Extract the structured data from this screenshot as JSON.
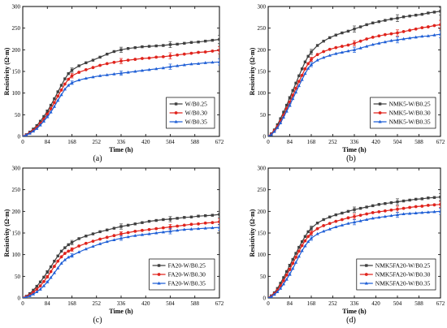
{
  "chart_data": [
    {
      "type": "line",
      "panel_label": "(a)",
      "xlabel": "Time (h)",
      "ylabel": "Resistivity (Ω·m)",
      "xlim": [
        0,
        672
      ],
      "ylim": [
        0,
        300
      ],
      "xticks": [
        0,
        84,
        168,
        252,
        336,
        420,
        504,
        588,
        672
      ],
      "yticks": [
        0,
        50,
        100,
        150,
        200,
        250,
        300
      ],
      "legend_position": "bottom-right",
      "x": [
        0,
        12,
        24,
        36,
        48,
        60,
        72,
        84,
        96,
        108,
        120,
        132,
        144,
        156,
        168,
        192,
        216,
        240,
        264,
        288,
        312,
        336,
        360,
        384,
        408,
        432,
        456,
        480,
        504,
        528,
        552,
        576,
        600,
        624,
        648,
        672
      ],
      "series": [
        {
          "name": "W/B0.25",
          "color": "#404040",
          "marker": "square",
          "values": [
            0,
            4,
            10,
            17,
            25,
            35,
            46,
            58,
            72,
            87,
            103,
            118,
            133,
            145,
            153,
            163,
            170,
            176,
            183,
            190,
            196,
            200,
            203,
            205,
            207,
            208,
            209,
            210,
            212,
            213,
            215,
            217,
            218,
            220,
            222,
            224
          ],
          "errors": [
            0,
            1,
            1,
            2,
            2,
            2,
            2,
            3,
            3,
            3,
            4,
            4,
            5,
            5,
            5,
            5,
            5,
            5,
            5,
            6,
            6,
            6,
            6,
            6,
            6,
            6,
            6,
            7,
            7,
            7,
            7,
            7,
            7,
            8,
            8,
            9
          ]
        },
        {
          "name": "W/B0.30",
          "color": "#e0241d",
          "marker": "circle",
          "values": [
            0,
            3,
            8,
            14,
            21,
            30,
            40,
            51,
            64,
            78,
            93,
            107,
            121,
            132,
            140,
            148,
            154,
            159,
            164,
            168,
            171,
            174,
            176,
            178,
            180,
            181,
            183,
            184,
            186,
            188,
            190,
            192,
            194,
            195,
            197,
            199
          ],
          "errors": [
            0,
            1,
            1,
            1,
            2,
            2,
            2,
            3,
            3,
            3,
            3,
            4,
            4,
            4,
            5,
            5,
            5,
            5,
            5,
            5,
            6,
            6,
            6,
            6,
            6,
            6,
            6,
            6,
            7,
            7,
            7,
            7,
            7,
            7,
            8,
            8
          ]
        },
        {
          "name": "W/B0.35",
          "color": "#1f5fd6",
          "marker": "triangle",
          "values": [
            0,
            3,
            7,
            12,
            18,
            26,
            35,
            45,
            56,
            69,
            83,
            96,
            109,
            118,
            124,
            130,
            134,
            137,
            140,
            142,
            144,
            146,
            148,
            150,
            152,
            154,
            156,
            158,
            161,
            163,
            165,
            167,
            168,
            170,
            171,
            172
          ],
          "errors": [
            0,
            1,
            1,
            1,
            2,
            2,
            2,
            2,
            3,
            3,
            3,
            4,
            4,
            4,
            4,
            4,
            5,
            5,
            5,
            5,
            5,
            5,
            5,
            6,
            6,
            6,
            6,
            6,
            6,
            6,
            6,
            7,
            7,
            7,
            7,
            7
          ]
        }
      ]
    },
    {
      "type": "line",
      "panel_label": "(b)",
      "xlabel": "Time (h)",
      "ylabel": "Resistivity (Ω·m)",
      "xlim": [
        0,
        672
      ],
      "ylim": [
        0,
        300
      ],
      "xticks": [
        0,
        84,
        168,
        252,
        336,
        420,
        504,
        588,
        672
      ],
      "yticks": [
        0,
        50,
        100,
        150,
        200,
        250,
        300
      ],
      "legend_position": "bottom-right",
      "x": [
        0,
        12,
        24,
        36,
        48,
        60,
        72,
        84,
        96,
        108,
        120,
        132,
        144,
        156,
        168,
        192,
        216,
        240,
        264,
        288,
        312,
        336,
        360,
        384,
        408,
        432,
        456,
        480,
        504,
        528,
        552,
        576,
        600,
        624,
        648,
        672
      ],
      "series": [
        {
          "name": "NMK5-W/B0.25",
          "color": "#404040",
          "marker": "square",
          "values": [
            0,
            6,
            15,
            27,
            41,
            56,
            72,
            89,
            106,
            123,
            140,
            156,
            172,
            185,
            195,
            210,
            220,
            228,
            234,
            239,
            243,
            248,
            253,
            258,
            262,
            265,
            268,
            271,
            273,
            276,
            278,
            280,
            282,
            285,
            287,
            289
          ],
          "errors": [
            0,
            1,
            2,
            2,
            3,
            3,
            3,
            3,
            4,
            4,
            4,
            5,
            5,
            5,
            6,
            6,
            6,
            6,
            6,
            7,
            7,
            7,
            7,
            7,
            7,
            7,
            7,
            8,
            8,
            8,
            8,
            8,
            8,
            9,
            9,
            9
          ]
        },
        {
          "name": "NMK5-W/B0.30",
          "color": "#e0241d",
          "marker": "circle",
          "values": [
            0,
            5,
            13,
            23,
            35,
            49,
            64,
            79,
            95,
            111,
            127,
            141,
            156,
            168,
            178,
            189,
            196,
            201,
            205,
            208,
            211,
            215,
            220,
            225,
            229,
            232,
            235,
            237,
            239,
            242,
            245,
            248,
            251,
            253,
            256,
            258
          ],
          "errors": [
            0,
            1,
            1,
            2,
            2,
            3,
            3,
            3,
            4,
            4,
            4,
            4,
            5,
            5,
            5,
            5,
            5,
            6,
            6,
            6,
            6,
            6,
            6,
            7,
            7,
            7,
            7,
            7,
            7,
            7,
            8,
            8,
            8,
            8,
            9,
            10
          ]
        },
        {
          "name": "NMK5-W/B0.35",
          "color": "#1f5fd6",
          "marker": "triangle",
          "values": [
            0,
            4,
            11,
            20,
            31,
            44,
            58,
            72,
            87,
            102,
            117,
            131,
            145,
            157,
            166,
            176,
            182,
            187,
            191,
            194,
            197,
            200,
            204,
            208,
            212,
            215,
            218,
            221,
            223,
            225,
            227,
            229,
            231,
            232,
            234,
            236
          ],
          "errors": [
            0,
            1,
            1,
            2,
            2,
            2,
            3,
            3,
            3,
            4,
            4,
            4,
            4,
            5,
            5,
            5,
            5,
            5,
            5,
            6,
            6,
            6,
            6,
            6,
            6,
            6,
            6,
            7,
            7,
            7,
            7,
            7,
            7,
            7,
            7,
            8
          ]
        }
      ]
    },
    {
      "type": "line",
      "panel_label": "(c)",
      "xlabel": "Time (h)",
      "ylabel": "Resistivity (Ω·m)",
      "xlim": [
        0,
        672
      ],
      "ylim": [
        0,
        300
      ],
      "xticks": [
        0,
        84,
        168,
        252,
        336,
        420,
        504,
        588,
        672
      ],
      "yticks": [
        0,
        50,
        100,
        150,
        200,
        250,
        300
      ],
      "legend_position": "bottom-right",
      "x": [
        0,
        12,
        24,
        36,
        48,
        60,
        72,
        84,
        96,
        108,
        120,
        132,
        144,
        156,
        168,
        192,
        216,
        240,
        264,
        288,
        312,
        336,
        360,
        384,
        408,
        432,
        456,
        480,
        504,
        528,
        552,
        576,
        600,
        624,
        648,
        672
      ],
      "series": [
        {
          "name": "FA20-W/B0.25",
          "color": "#404040",
          "marker": "square",
          "values": [
            0,
            4,
            10,
            18,
            27,
            37,
            48,
            60,
            72,
            85,
            97,
            108,
            116,
            123,
            128,
            137,
            143,
            148,
            153,
            157,
            161,
            165,
            168,
            171,
            174,
            177,
            179,
            181,
            182,
            184,
            186,
            187,
            189,
            190,
            191,
            193
          ],
          "errors": [
            0,
            1,
            1,
            1,
            2,
            2,
            2,
            3,
            3,
            3,
            4,
            4,
            4,
            5,
            5,
            5,
            5,
            5,
            5,
            5,
            5,
            6,
            6,
            6,
            6,
            6,
            6,
            6,
            6,
            6,
            6,
            7,
            7,
            7,
            7,
            7
          ]
        },
        {
          "name": "FA20-W/B0.30",
          "color": "#e0241d",
          "marker": "circle",
          "values": [
            0,
            3,
            7,
            13,
            20,
            28,
            38,
            49,
            61,
            73,
            85,
            95,
            103,
            108,
            112,
            120,
            126,
            131,
            136,
            140,
            144,
            148,
            151,
            154,
            156,
            158,
            160,
            162,
            164,
            166,
            168,
            170,
            171,
            173,
            174,
            176
          ],
          "errors": [
            0,
            1,
            1,
            1,
            2,
            2,
            2,
            3,
            3,
            3,
            3,
            4,
            4,
            4,
            4,
            4,
            5,
            5,
            5,
            5,
            5,
            5,
            5,
            6,
            6,
            6,
            6,
            6,
            6,
            6,
            6,
            6,
            7,
            7,
            7,
            7
          ]
        },
        {
          "name": "FA20-W/B0.35",
          "color": "#1f5fd6",
          "marker": "triangle",
          "values": [
            0,
            2,
            5,
            9,
            14,
            20,
            28,
            37,
            47,
            58,
            69,
            80,
            88,
            94,
            98,
            106,
            113,
            119,
            125,
            130,
            134,
            138,
            141,
            144,
            146,
            148,
            150,
            152,
            154,
            156,
            158,
            159,
            160,
            161,
            162,
            163
          ],
          "errors": [
            0,
            1,
            1,
            1,
            1,
            2,
            2,
            2,
            3,
            3,
            3,
            3,
            4,
            4,
            4,
            4,
            4,
            5,
            5,
            5,
            5,
            5,
            5,
            5,
            5,
            6,
            6,
            6,
            6,
            6,
            6,
            6,
            6,
            7,
            7,
            7
          ]
        }
      ]
    },
    {
      "type": "line",
      "panel_label": "(d)",
      "xlabel": "Time (h)",
      "ylabel": "Resistivity (Ω·m)",
      "xlim": [
        0,
        672
      ],
      "ylim": [
        0,
        300
      ],
      "xticks": [
        0,
        84,
        168,
        252,
        336,
        420,
        504,
        588,
        672
      ],
      "yticks": [
        0,
        50,
        100,
        150,
        200,
        250,
        300
      ],
      "legend_position": "bottom-right",
      "x": [
        0,
        12,
        24,
        36,
        48,
        60,
        72,
        84,
        96,
        108,
        120,
        132,
        144,
        156,
        168,
        192,
        216,
        240,
        264,
        288,
        312,
        336,
        360,
        384,
        408,
        432,
        456,
        480,
        504,
        528,
        552,
        576,
        600,
        624,
        648,
        672
      ],
      "series": [
        {
          "name": "NMK5FA20-W/B0.25",
          "color": "#404040",
          "marker": "square",
          "values": [
            0,
            5,
            12,
            22,
            34,
            47,
            61,
            75,
            89,
            103,
            117,
            130,
            142,
            153,
            161,
            173,
            181,
            187,
            192,
            196,
            200,
            204,
            207,
            210,
            213,
            216,
            218,
            220,
            222,
            224,
            226,
            228,
            229,
            231,
            232,
            233
          ],
          "errors": [
            0,
            1,
            1,
            2,
            2,
            3,
            3,
            3,
            4,
            4,
            4,
            4,
            5,
            5,
            5,
            5,
            5,
            6,
            6,
            6,
            6,
            6,
            6,
            6,
            6,
            7,
            7,
            7,
            7,
            7,
            7,
            7,
            8,
            8,
            8,
            8
          ]
        },
        {
          "name": "NMK5FA20-W/B0.30",
          "color": "#e0241d",
          "marker": "circle",
          "values": [
            0,
            4,
            10,
            18,
            28,
            40,
            53,
            66,
            80,
            94,
            108,
            121,
            132,
            142,
            150,
            160,
            167,
            172,
            177,
            181,
            185,
            188,
            191,
            194,
            197,
            199,
            201,
            203,
            205,
            207,
            209,
            211,
            212,
            214,
            215,
            216
          ],
          "errors": [
            0,
            1,
            1,
            1,
            2,
            2,
            3,
            3,
            3,
            4,
            4,
            4,
            4,
            5,
            5,
            5,
            5,
            5,
            5,
            6,
            6,
            6,
            6,
            6,
            6,
            6,
            6,
            7,
            7,
            7,
            7,
            7,
            7,
            7,
            7,
            7
          ]
        },
        {
          "name": "NMK5FA20-W/B0.35",
          "color": "#1f5fd6",
          "marker": "triangle",
          "values": [
            0,
            3,
            8,
            14,
            22,
            32,
            43,
            55,
            68,
            82,
            96,
            109,
            120,
            130,
            138,
            148,
            154,
            159,
            164,
            168,
            172,
            175,
            178,
            181,
            184,
            186,
            188,
            190,
            192,
            194,
            195,
            196,
            197,
            198,
            199,
            200
          ],
          "errors": [
            0,
            1,
            1,
            1,
            2,
            2,
            2,
            3,
            3,
            3,
            4,
            4,
            4,
            4,
            5,
            5,
            5,
            5,
            5,
            5,
            5,
            6,
            6,
            6,
            6,
            6,
            6,
            6,
            6,
            6,
            7,
            7,
            7,
            7,
            7,
            7
          ]
        }
      ]
    }
  ]
}
